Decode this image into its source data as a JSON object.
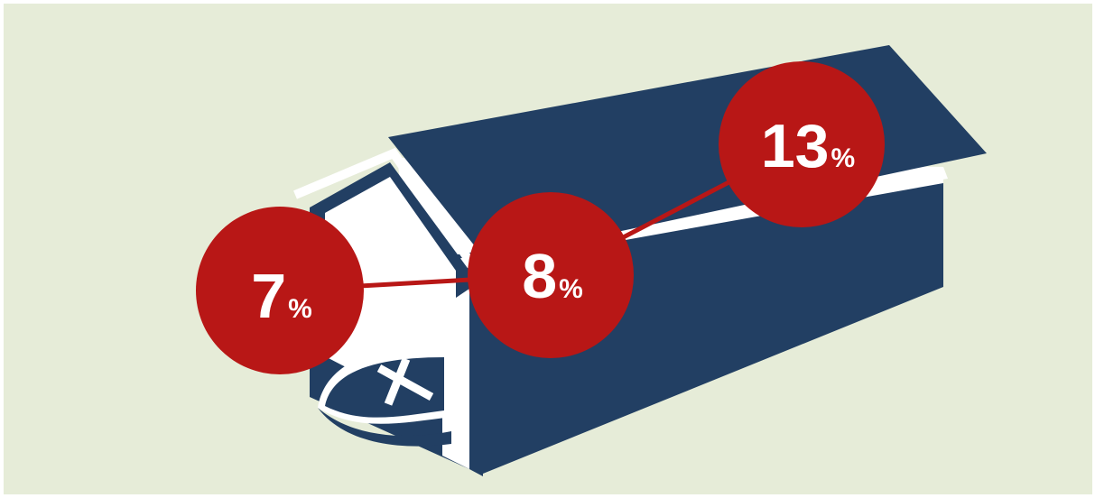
{
  "colors": {
    "background": "#e6ecd8",
    "boathouse": "#223f63",
    "trim": "#ffffff",
    "markers": "#b81716",
    "text": "#ffffff"
  },
  "markers": [
    {
      "id": "marker-7",
      "value": "7",
      "unit": "%"
    },
    {
      "id": "marker-8",
      "value": "8",
      "unit": "%"
    },
    {
      "id": "marker-13",
      "value": "13",
      "unit": "%"
    }
  ]
}
